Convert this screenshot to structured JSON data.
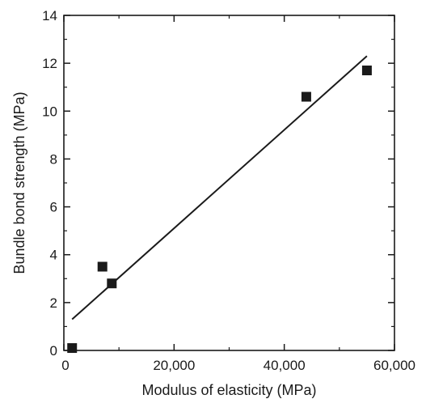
{
  "chart_data": {
    "type": "scatter",
    "title": "",
    "xlabel": "Modulus of elasticity (MPa)",
    "ylabel": "Bundle bond strength (MPa)",
    "xlim": [
      0,
      60000
    ],
    "ylim": [
      0,
      14
    ],
    "x_ticks": [
      0,
      20000,
      40000,
      60000
    ],
    "x_tick_labels": [
      "0",
      "20,000",
      "40,000",
      "60,000"
    ],
    "y_ticks": [
      0,
      2,
      4,
      6,
      8,
      10,
      12,
      14
    ],
    "y_tick_labels": [
      "0",
      "2",
      "4",
      "6",
      "8",
      "10",
      "12",
      "14"
    ],
    "grid": false,
    "series": [
      {
        "marker": "square",
        "color": "#1a1a1a",
        "points": [
          {
            "x": 1500,
            "y": 0.1
          },
          {
            "x": 7000,
            "y": 3.5
          },
          {
            "x": 8700,
            "y": 2.8
          },
          {
            "x": 44000,
            "y": 10.6
          },
          {
            "x": 55000,
            "y": 11.7
          }
        ]
      }
    ],
    "trendline": {
      "color": "#1a1a1a",
      "points": [
        {
          "x": 1500,
          "y": 1.3
        },
        {
          "x": 55000,
          "y": 12.3
        }
      ]
    }
  }
}
